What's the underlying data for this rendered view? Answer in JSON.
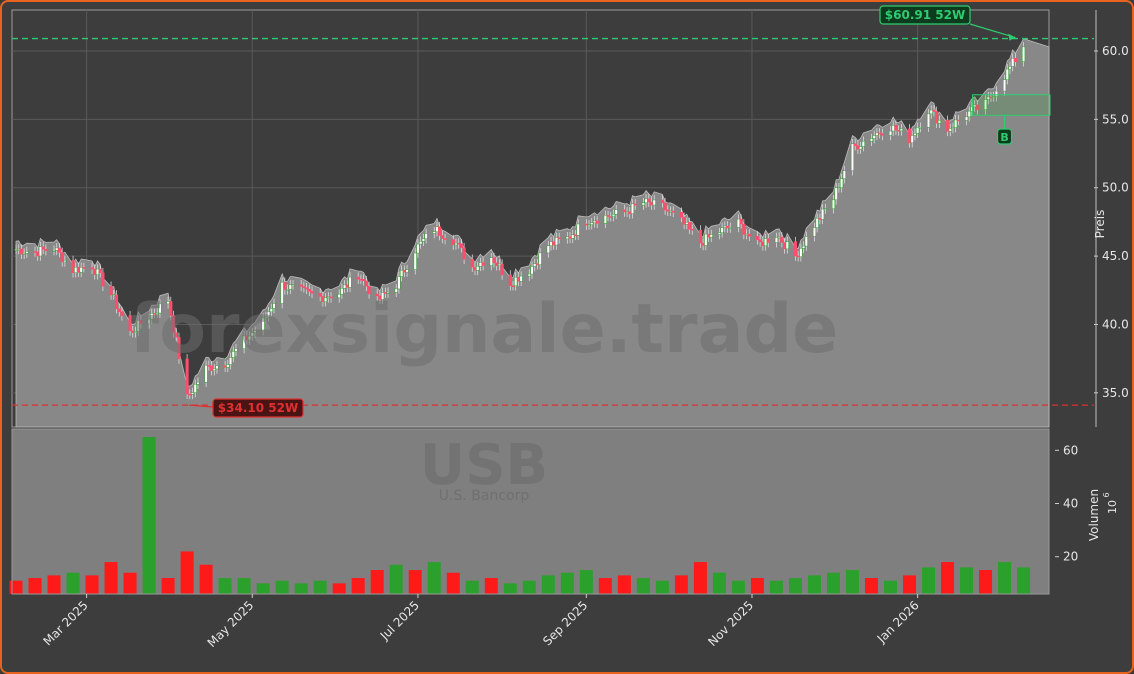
{
  "watermark": {
    "text": "forexsignale.trade",
    "ticker": "USB",
    "company": "U.S. Bancorp"
  },
  "colors": {
    "up": "#2ca02c",
    "down": "#ff1a1a",
    "high": "#2ecc71",
    "low": "#e03030",
    "area": "#888888",
    "bg": "#3d3d3d",
    "frame": "#e8641e"
  },
  "chart_data": {
    "type": "candlestick",
    "price_axis": {
      "label": "Preis",
      "ylim": [
        32.5,
        63.0
      ],
      "ticks": [
        "35.0",
        "40.0",
        "45.0",
        "50.0",
        "55.0",
        "60.0"
      ],
      "tick_values": [
        35,
        40,
        45,
        50,
        55,
        60
      ]
    },
    "volume_axis": {
      "label": "Volumen",
      "unit": "10",
      "exponent": "6",
      "ylim": [
        6,
        68
      ],
      "ticks": [
        "20",
        "40",
        "60"
      ],
      "tick_values": [
        20,
        40,
        60
      ]
    },
    "x_axis": {
      "ticks": [
        "Mar 2025",
        "May 2025",
        "Jul 2025",
        "Sep 2025",
        "Nov 2025",
        "Jan 2026"
      ],
      "tick_dates": [
        "2025-03-01",
        "2025-05-01",
        "2025-07-01",
        "2025-09-01",
        "2025-11-01",
        "2026-01-01"
      ],
      "range": [
        "2025-02-03",
        "2026-02-11"
      ]
    },
    "high_52w": {
      "label": "$60.91 52W",
      "value": 60.91,
      "date": "2026-02-06"
    },
    "low_52w": {
      "label": "$34.10 52W",
      "value": 34.1,
      "date": "2025-04-07"
    },
    "buy_signal": {
      "label": "B",
      "date": "2026-02-02",
      "zone": [
        55.3,
        56.8
      ]
    },
    "close_series": [
      [
        "2025-02-03",
        45.5
      ],
      [
        "2025-02-10",
        45.3
      ],
      [
        "2025-02-17",
        45.6
      ],
      [
        "2025-02-24",
        44.0
      ],
      [
        "2025-03-03",
        44.3
      ],
      [
        "2025-03-10",
        42.2
      ],
      [
        "2025-03-17",
        39.4
      ],
      [
        "2025-03-24",
        40.6
      ],
      [
        "2025-03-31",
        41.8
      ],
      [
        "2025-04-07",
        34.6
      ],
      [
        "2025-04-14",
        36.8
      ],
      [
        "2025-04-21",
        37.2
      ],
      [
        "2025-04-28",
        38.8
      ],
      [
        "2025-05-05",
        40.2
      ],
      [
        "2025-05-12",
        42.9
      ],
      [
        "2025-05-19",
        42.4
      ],
      [
        "2025-05-26",
        42.0
      ],
      [
        "2025-06-02",
        42.3
      ],
      [
        "2025-06-09",
        43.7
      ],
      [
        "2025-06-16",
        41.7
      ],
      [
        "2025-06-23",
        42.9
      ],
      [
        "2025-06-30",
        45.5
      ],
      [
        "2025-07-07",
        47.0
      ],
      [
        "2025-07-14",
        46.2
      ],
      [
        "2025-07-21",
        44.2
      ],
      [
        "2025-07-28",
        45.0
      ],
      [
        "2025-08-04",
        43.1
      ],
      [
        "2025-08-11",
        44.0
      ],
      [
        "2025-08-18",
        45.8
      ],
      [
        "2025-08-25",
        46.3
      ],
      [
        "2025-09-01",
        47.6
      ],
      [
        "2025-09-08",
        47.9
      ],
      [
        "2025-09-15",
        48.2
      ],
      [
        "2025-09-22",
        48.9
      ],
      [
        "2025-09-29",
        48.6
      ],
      [
        "2025-10-06",
        47.5
      ],
      [
        "2025-10-13",
        46.0
      ],
      [
        "2025-10-20",
        46.8
      ],
      [
        "2025-10-27",
        47.4
      ],
      [
        "2025-11-03",
        45.8
      ],
      [
        "2025-11-10",
        46.6
      ],
      [
        "2025-11-17",
        45.0
      ],
      [
        "2025-11-24",
        47.3
      ],
      [
        "2025-12-01",
        49.2
      ],
      [
        "2025-12-08",
        52.9
      ],
      [
        "2025-12-15",
        53.8
      ],
      [
        "2025-12-22",
        54.5
      ],
      [
        "2025-12-29",
        53.6
      ],
      [
        "2026-01-05",
        55.7
      ],
      [
        "2026-01-12",
        54.3
      ],
      [
        "2026-01-19",
        55.4
      ],
      [
        "2026-01-26",
        56.1
      ],
      [
        "2026-02-02",
        58.2
      ],
      [
        "2026-02-09",
        60.3
      ]
    ],
    "volume_series": [
      [
        "2025-02-03",
        11,
        "down"
      ],
      [
        "2025-02-10",
        12,
        "down"
      ],
      [
        "2025-02-17",
        13,
        "down"
      ],
      [
        "2025-02-24",
        14,
        "up"
      ],
      [
        "2025-03-03",
        13,
        "down"
      ],
      [
        "2025-03-10",
        18,
        "down"
      ],
      [
        "2025-03-17",
        14,
        "down"
      ],
      [
        "2025-03-24",
        65,
        "up"
      ],
      [
        "2025-03-31",
        12,
        "down"
      ],
      [
        "2025-04-07",
        22,
        "down"
      ],
      [
        "2025-04-14",
        17,
        "down"
      ],
      [
        "2025-04-21",
        12,
        "up"
      ],
      [
        "2025-04-28",
        12,
        "up"
      ],
      [
        "2025-05-05",
        10,
        "up"
      ],
      [
        "2025-05-12",
        11,
        "up"
      ],
      [
        "2025-05-19",
        10,
        "up"
      ],
      [
        "2025-05-26",
        11,
        "up"
      ],
      [
        "2025-06-02",
        10,
        "down"
      ],
      [
        "2025-06-09",
        12,
        "down"
      ],
      [
        "2025-06-16",
        15,
        "down"
      ],
      [
        "2025-06-23",
        17,
        "up"
      ],
      [
        "2025-06-30",
        15,
        "down"
      ],
      [
        "2025-07-07",
        18,
        "up"
      ],
      [
        "2025-07-14",
        14,
        "down"
      ],
      [
        "2025-07-21",
        11,
        "up"
      ],
      [
        "2025-07-28",
        12,
        "down"
      ],
      [
        "2025-08-04",
        10,
        "up"
      ],
      [
        "2025-08-11",
        11,
        "up"
      ],
      [
        "2025-08-18",
        13,
        "up"
      ],
      [
        "2025-08-25",
        14,
        "up"
      ],
      [
        "2025-09-01",
        15,
        "up"
      ],
      [
        "2025-09-08",
        12,
        "down"
      ],
      [
        "2025-09-15",
        13,
        "down"
      ],
      [
        "2025-09-22",
        12,
        "up"
      ],
      [
        "2025-09-29",
        11,
        "up"
      ],
      [
        "2025-10-06",
        13,
        "down"
      ],
      [
        "2025-10-13",
        18,
        "down"
      ],
      [
        "2025-10-20",
        14,
        "up"
      ],
      [
        "2025-10-27",
        11,
        "up"
      ],
      [
        "2025-11-03",
        12,
        "down"
      ],
      [
        "2025-11-10",
        11,
        "up"
      ],
      [
        "2025-11-17",
        12,
        "up"
      ],
      [
        "2025-11-24",
        13,
        "up"
      ],
      [
        "2025-12-01",
        14,
        "up"
      ],
      [
        "2025-12-08",
        15,
        "up"
      ],
      [
        "2025-12-15",
        12,
        "down"
      ],
      [
        "2025-12-22",
        11,
        "up"
      ],
      [
        "2025-12-29",
        13,
        "down"
      ],
      [
        "2026-01-05",
        16,
        "up"
      ],
      [
        "2026-01-12",
        18,
        "down"
      ],
      [
        "2026-01-19",
        16,
        "up"
      ],
      [
        "2026-01-26",
        15,
        "down"
      ],
      [
        "2026-02-02",
        18,
        "up"
      ],
      [
        "2026-02-09",
        16,
        "up"
      ]
    ]
  }
}
